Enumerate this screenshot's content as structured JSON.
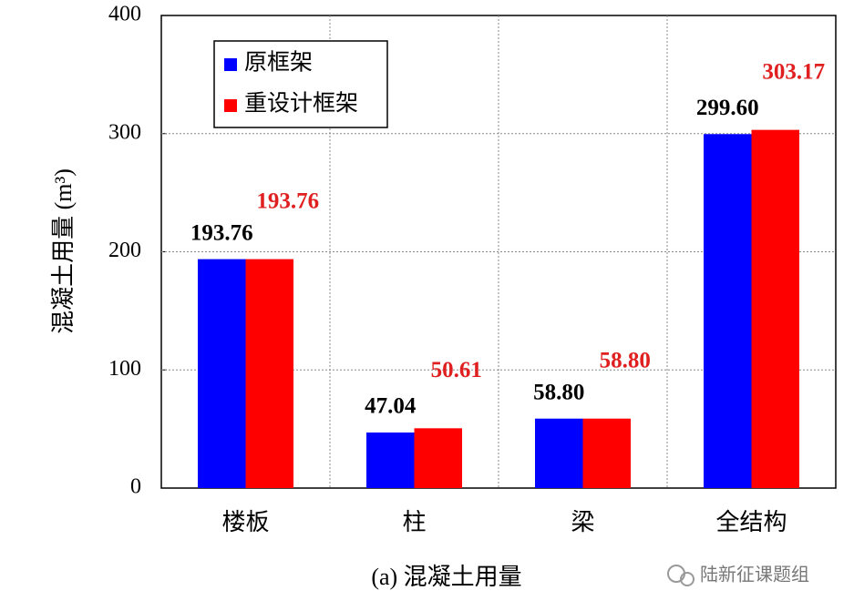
{
  "chart_data": {
    "type": "bar",
    "y_label": "混凝土用量 (m³)",
    "caption": "(a) 混凝土用量",
    "watermark": "陆新征课题组",
    "categories": [
      "楼板",
      "柱",
      "梁",
      "全结构"
    ],
    "series": [
      {
        "name": "原框架",
        "color": "#0000ff",
        "label_color": "#000000",
        "values": [
          193.76,
          47.04,
          58.8,
          299.6
        ],
        "value_labels": [
          "193.76",
          "47.04",
          "58.80",
          "299.60"
        ]
      },
      {
        "name": "重设计框架",
        "color": "#ff0000",
        "label_color": "#e02020",
        "values": [
          193.76,
          50.61,
          58.8,
          303.17
        ],
        "value_labels": [
          "193.76",
          "50.61",
          "58.80",
          "303.17"
        ]
      }
    ],
    "ylim": [
      0,
      400
    ],
    "yticks": [
      0,
      100,
      200,
      300,
      400
    ],
    "grid": true,
    "legend": "upper left"
  }
}
